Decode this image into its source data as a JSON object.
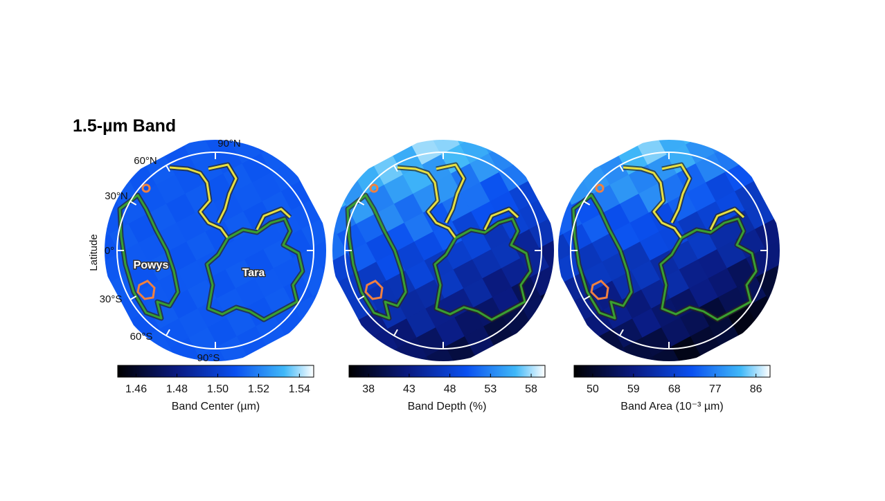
{
  "title": "1.5-µm Band",
  "latitude_labels": [
    "90°N",
    "60°N",
    "30°N",
    "0°",
    "30°S",
    "60°S",
    "90°S"
  ],
  "axis_label": "Latitude",
  "regions": [
    "Powys",
    "Tara"
  ],
  "colorbars": [
    {
      "label": "Band Center (µm)",
      "range": [
        1.451,
        1.547
      ],
      "ticks": [
        1.46,
        1.48,
        {
          "value": 1.5,
          "label": "1.50"
        },
        1.52,
        1.54
      ]
    },
    {
      "label": "Band Depth (%)",
      "range": [
        35.6,
        59.7
      ],
      "ticks": [
        38,
        43,
        48,
        53,
        58
      ]
    },
    {
      "label": "Band Area (10⁻³ µm)",
      "range": [
        45.9,
        89.1
      ],
      "ticks": [
        50,
        59,
        68,
        77,
        86
      ]
    }
  ]
}
